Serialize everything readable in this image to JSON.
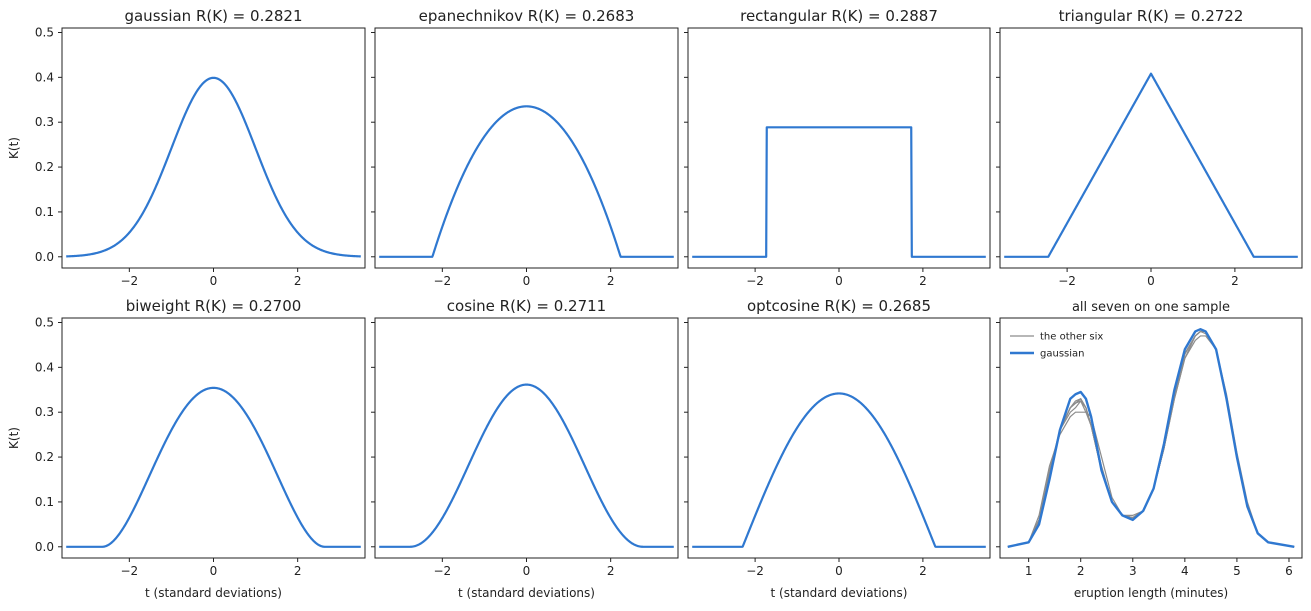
{
  "chart_data": [
    {
      "type": "line",
      "kernel": "gaussian",
      "title": "gaussian   R(K) = 0.2821",
      "xlabel": "",
      "ylabel": "K(t)",
      "xlim": [
        -3.6,
        3.6
      ],
      "ylim": [
        -0.025,
        0.51
      ],
      "xticks": [
        -2,
        0,
        2
      ],
      "yticks": [
        0.0,
        0.1,
        0.2,
        0.3,
        0.4,
        0.5
      ],
      "peak": 0.399,
      "support": null
    },
    {
      "type": "line",
      "kernel": "epanechnikov",
      "title": "epanechnikov   R(K) = 0.2683",
      "xlabel": "",
      "ylabel": "",
      "xlim": [
        -3.6,
        3.6
      ],
      "ylim": [
        -0.025,
        0.51
      ],
      "xticks": [
        -2,
        0,
        2
      ],
      "yticks": [
        0.0,
        0.1,
        0.2,
        0.3,
        0.4,
        0.5
      ],
      "peak": 0.335,
      "support": 2.236
    },
    {
      "type": "line",
      "kernel": "rectangular",
      "title": "rectangular   R(K) = 0.2887",
      "xlabel": "",
      "ylabel": "",
      "xlim": [
        -3.6,
        3.6
      ],
      "ylim": [
        -0.025,
        0.51
      ],
      "xticks": [
        -2,
        0,
        2
      ],
      "yticks": [
        0.0,
        0.1,
        0.2,
        0.3,
        0.4,
        0.5
      ],
      "peak": 0.289,
      "support": 1.732
    },
    {
      "type": "line",
      "kernel": "triangular",
      "title": "triangular   R(K) = 0.2722",
      "xlabel": "",
      "ylabel": "",
      "xlim": [
        -3.6,
        3.6
      ],
      "ylim": [
        -0.025,
        0.51
      ],
      "xticks": [
        -2,
        0,
        2
      ],
      "yticks": [
        0.0,
        0.1,
        0.2,
        0.3,
        0.4,
        0.5
      ],
      "peak": 0.408,
      "support": 2.449
    },
    {
      "type": "line",
      "kernel": "biweight",
      "title": "biweight   R(K) = 0.2700",
      "xlabel": "t (standard deviations)",
      "ylabel": "K(t)",
      "xlim": [
        -3.6,
        3.6
      ],
      "ylim": [
        -0.025,
        0.51
      ],
      "xticks": [
        -2,
        0,
        2
      ],
      "yticks": [
        0.0,
        0.1,
        0.2,
        0.3,
        0.4,
        0.5
      ],
      "peak": 0.355,
      "support": 2.646
    },
    {
      "type": "line",
      "kernel": "cosine",
      "title": "cosine   R(K) = 0.2711",
      "xlabel": "t (standard deviations)",
      "ylabel": "",
      "xlim": [
        -3.6,
        3.6
      ],
      "ylim": [
        -0.025,
        0.51
      ],
      "xticks": [
        -2,
        0,
        2
      ],
      "yticks": [
        0.0,
        0.1,
        0.2,
        0.3,
        0.4,
        0.5
      ],
      "peak": 0.362,
      "support": 2.765
    },
    {
      "type": "line",
      "kernel": "optcosine",
      "title": "optcosine   R(K) = 0.2685",
      "xlabel": "t (standard deviations)",
      "ylabel": "",
      "xlim": [
        -3.6,
        3.6
      ],
      "ylim": [
        -0.025,
        0.51
      ],
      "xticks": [
        -2,
        0,
        2
      ],
      "yticks": [
        0.0,
        0.1,
        0.2,
        0.3,
        0.4,
        0.5
      ],
      "peak": 0.342,
      "support": 2.297
    },
    {
      "type": "line",
      "title": "all seven on one sample",
      "xlabel": "eruption length (minutes)",
      "ylabel": "",
      "xlim": [
        0.45,
        6.25
      ],
      "ylim": [
        -0.025,
        0.51
      ],
      "xticks": [
        1,
        2,
        3,
        4,
        5,
        6
      ],
      "yticks": [
        0.0,
        0.1,
        0.2,
        0.3,
        0.4,
        0.5
      ],
      "legend_position": "top-left",
      "series": [
        {
          "name": "the other six",
          "color": "#8c8c8c",
          "curves": [
            {
              "x": [
                0.6,
                1.0,
                1.2,
                1.4,
                1.6,
                1.8,
                1.9,
                2.0,
                2.1,
                2.2,
                2.4,
                2.6,
                2.8,
                3.0,
                3.2,
                3.4,
                3.6,
                3.8,
                4.0,
                4.2,
                4.3,
                4.4,
                4.6,
                4.8,
                5.0,
                5.2,
                5.4,
                5.6,
                6.1
              ],
              "y": [
                0.0,
                0.01,
                0.06,
                0.17,
                0.26,
                0.3,
                0.31,
                0.325,
                0.3,
                0.27,
                0.18,
                0.1,
                0.07,
                0.065,
                0.08,
                0.13,
                0.22,
                0.33,
                0.42,
                0.47,
                0.48,
                0.475,
                0.44,
                0.33,
                0.2,
                0.09,
                0.03,
                0.01,
                0.0
              ]
            },
            {
              "x": [
                0.6,
                1.0,
                1.2,
                1.4,
                1.6,
                1.8,
                1.9,
                2.0,
                2.1,
                2.2,
                2.4,
                2.6,
                2.8,
                3.0,
                3.2,
                3.4,
                3.6,
                3.8,
                4.0,
                4.2,
                4.3,
                4.4,
                4.6,
                4.8,
                5.0,
                5.2,
                5.4,
                5.6,
                6.1
              ],
              "y": [
                0.0,
                0.01,
                0.07,
                0.18,
                0.25,
                0.29,
                0.3,
                0.3,
                0.3,
                0.29,
                0.2,
                0.11,
                0.07,
                0.07,
                0.08,
                0.13,
                0.22,
                0.33,
                0.42,
                0.46,
                0.47,
                0.47,
                0.44,
                0.34,
                0.21,
                0.1,
                0.03,
                0.01,
                0.0
              ]
            },
            {
              "x": [
                0.6,
                1.0,
                1.2,
                1.4,
                1.6,
                1.8,
                1.9,
                2.0,
                2.1,
                2.2,
                2.4,
                2.6,
                2.8,
                3.0,
                3.2,
                3.4,
                3.6,
                3.8,
                4.0,
                4.2,
                4.3,
                4.4,
                4.6,
                4.8,
                5.0,
                5.2,
                5.4,
                5.6,
                6.1
              ],
              "y": [
                0.0,
                0.01,
                0.06,
                0.16,
                0.26,
                0.31,
                0.32,
                0.33,
                0.31,
                0.27,
                0.17,
                0.1,
                0.07,
                0.06,
                0.08,
                0.13,
                0.22,
                0.34,
                0.43,
                0.47,
                0.48,
                0.48,
                0.44,
                0.33,
                0.2,
                0.09,
                0.03,
                0.01,
                0.0
              ]
            },
            {
              "x": [
                0.6,
                1.0,
                1.2,
                1.4,
                1.6,
                1.8,
                1.9,
                2.0,
                2.1,
                2.2,
                2.4,
                2.6,
                2.8,
                3.0,
                3.2,
                3.4,
                3.6,
                3.8,
                4.0,
                4.2,
                4.3,
                4.4,
                4.6,
                4.8,
                5.0,
                5.2,
                5.4,
                5.6,
                6.1
              ],
              "y": [
                0.0,
                0.01,
                0.06,
                0.16,
                0.26,
                0.31,
                0.325,
                0.33,
                0.31,
                0.27,
                0.17,
                0.1,
                0.07,
                0.065,
                0.08,
                0.13,
                0.22,
                0.34,
                0.43,
                0.47,
                0.48,
                0.48,
                0.44,
                0.33,
                0.2,
                0.09,
                0.03,
                0.01,
                0.0
              ]
            },
            {
              "x": [
                0.6,
                1.0,
                1.2,
                1.4,
                1.6,
                1.8,
                1.9,
                2.0,
                2.1,
                2.2,
                2.4,
                2.6,
                2.8,
                3.0,
                3.2,
                3.4,
                3.6,
                3.8,
                4.0,
                4.2,
                4.3,
                4.4,
                4.6,
                4.8,
                5.0,
                5.2,
                5.4,
                5.6,
                6.1
              ],
              "y": [
                0.0,
                0.01,
                0.06,
                0.16,
                0.26,
                0.31,
                0.32,
                0.325,
                0.31,
                0.27,
                0.17,
                0.1,
                0.07,
                0.065,
                0.08,
                0.13,
                0.22,
                0.34,
                0.43,
                0.47,
                0.48,
                0.48,
                0.44,
                0.33,
                0.2,
                0.09,
                0.03,
                0.01,
                0.0
              ]
            },
            {
              "x": [
                0.6,
                1.0,
                1.2,
                1.4,
                1.6,
                1.8,
                1.9,
                2.0,
                2.1,
                2.2,
                2.4,
                2.6,
                2.8,
                3.0,
                3.2,
                3.4,
                3.6,
                3.8,
                4.0,
                4.2,
                4.3,
                4.4,
                4.6,
                4.8,
                5.0,
                5.2,
                5.4,
                5.6,
                6.1
              ],
              "y": [
                0.0,
                0.01,
                0.06,
                0.16,
                0.26,
                0.31,
                0.32,
                0.33,
                0.31,
                0.27,
                0.17,
                0.1,
                0.07,
                0.065,
                0.08,
                0.13,
                0.22,
                0.34,
                0.43,
                0.47,
                0.48,
                0.48,
                0.44,
                0.33,
                0.2,
                0.09,
                0.03,
                0.01,
                0.0
              ]
            }
          ]
        },
        {
          "name": "gaussian",
          "color": "#2f78d0",
          "x": [
            0.6,
            1.0,
            1.2,
            1.4,
            1.6,
            1.8,
            1.9,
            2.0,
            2.1,
            2.2,
            2.4,
            2.6,
            2.8,
            3.0,
            3.2,
            3.4,
            3.6,
            3.8,
            4.0,
            4.2,
            4.3,
            4.4,
            4.6,
            4.8,
            5.0,
            5.2,
            5.4,
            5.6,
            6.1
          ],
          "y": [
            0.0,
            0.01,
            0.05,
            0.15,
            0.26,
            0.33,
            0.34,
            0.345,
            0.33,
            0.29,
            0.17,
            0.1,
            0.07,
            0.06,
            0.08,
            0.13,
            0.23,
            0.35,
            0.44,
            0.48,
            0.485,
            0.48,
            0.44,
            0.33,
            0.2,
            0.09,
            0.03,
            0.01,
            0.0
          ]
        }
      ]
    }
  ],
  "colors": {
    "kernel_line": "#2f78d0",
    "other_six_line": "#8c8c8c",
    "axes": "#222222"
  }
}
